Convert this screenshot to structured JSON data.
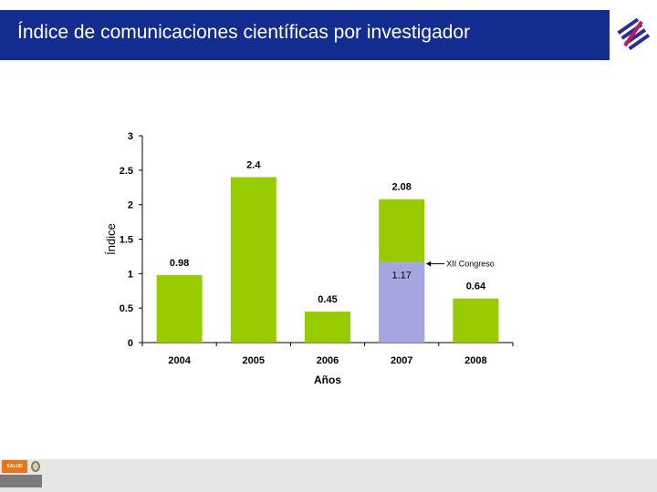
{
  "header": {
    "title": "Índice de comunicaciones científicas por investigador"
  },
  "footer": {
    "badge_label": "SALUD"
  },
  "colors": {
    "title_bar": "#132c8f",
    "bar_main": "#99cc00",
    "bar_highlight": "#a5a5e0",
    "footer": "#e6e6e6"
  },
  "icons": {
    "logo": "institution-logo-icon",
    "seal": "national-seal-icon"
  },
  "chart_data": {
    "type": "bar",
    "categories": [
      "2004",
      "2005",
      "2006",
      "2007",
      "2008"
    ],
    "values": [
      0.98,
      2.4,
      0.45,
      2.08,
      0.64
    ],
    "value_labels": [
      "0.98",
      "2.4",
      "0.45",
      "2.08",
      "0.64"
    ],
    "overlay": {
      "category": "2007",
      "value": 1.17,
      "label": "1.17",
      "annotation": "XII Congreso"
    },
    "xlabel": "Años",
    "ylabel": "Índice",
    "ylim": [
      0,
      3
    ],
    "yticks": [
      "0",
      "0.5",
      "1",
      "1.5",
      "2",
      "2.5",
      "3"
    ],
    "grid": false,
    "legend": "none"
  }
}
